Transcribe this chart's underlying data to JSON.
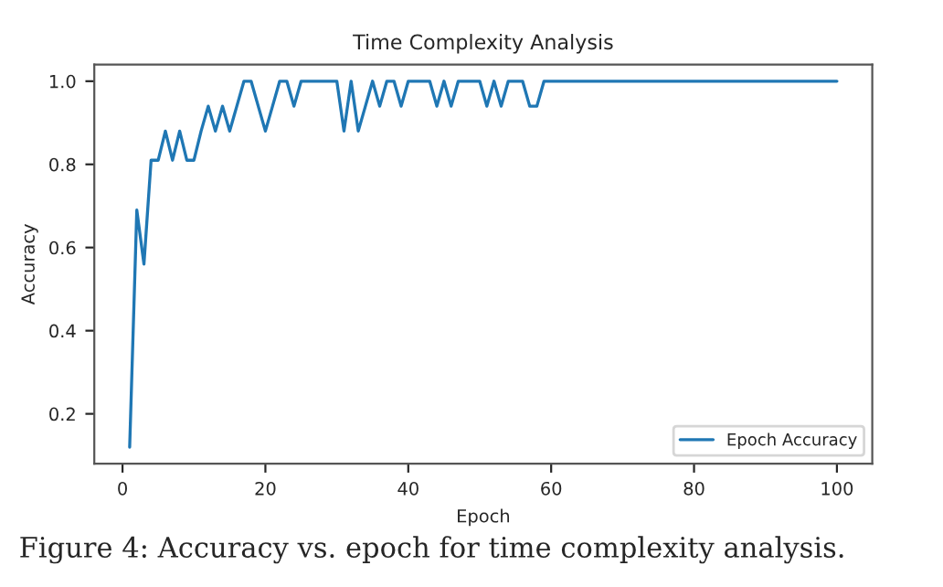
{
  "chart_data": {
    "type": "line",
    "title": "Time Complexity Analysis",
    "xlabel": "Epoch",
    "ylabel": "Accuracy",
    "x": [
      1,
      2,
      3,
      4,
      5,
      6,
      7,
      8,
      9,
      10,
      11,
      12,
      13,
      14,
      15,
      16,
      17,
      18,
      19,
      20,
      21,
      22,
      23,
      24,
      25,
      26,
      27,
      28,
      29,
      30,
      31,
      32,
      33,
      34,
      35,
      36,
      37,
      38,
      39,
      40,
      41,
      42,
      43,
      44,
      45,
      46,
      47,
      48,
      49,
      50,
      51,
      52,
      53,
      54,
      55,
      56,
      57,
      58,
      59,
      60,
      61,
      62,
      63,
      64,
      65,
      66,
      67,
      68,
      69,
      70,
      71,
      72,
      73,
      74,
      75,
      76,
      77,
      78,
      79,
      80,
      81,
      82,
      83,
      84,
      85,
      86,
      87,
      88,
      89,
      90,
      91,
      92,
      93,
      94,
      95,
      96,
      97,
      98,
      99,
      100
    ],
    "series": [
      {
        "name": "Epoch Accuracy",
        "color": "#1f77b4",
        "values": [
          0.12,
          0.69,
          0.56,
          0.81,
          0.81,
          0.88,
          0.81,
          0.88,
          0.81,
          0.81,
          0.88,
          0.94,
          0.88,
          0.94,
          0.88,
          0.94,
          1,
          1,
          0.94,
          0.88,
          0.94,
          1,
          1,
          0.94,
          1,
          1,
          1,
          1,
          1,
          1,
          0.88,
          1,
          0.88,
          0.94,
          1,
          0.94,
          1,
          1,
          0.94,
          1,
          1,
          1,
          1,
          0.94,
          1,
          0.94,
          1,
          1,
          1,
          1,
          0.94,
          1,
          0.94,
          1,
          1,
          1,
          0.94,
          0.94,
          1,
          1,
          1,
          1,
          1,
          1,
          1,
          1,
          1,
          1,
          1,
          1,
          1,
          1,
          1,
          1,
          1,
          1,
          1,
          1,
          1,
          1,
          1,
          1,
          1,
          1,
          1,
          1,
          1,
          1,
          1,
          1,
          1,
          1,
          1,
          1,
          1,
          1,
          1,
          1,
          1,
          1
        ]
      }
    ],
    "xlim": [
      -3.95,
      104.95
    ],
    "ylim": [
      0.08,
      1.04
    ],
    "xticks": [
      0,
      20,
      40,
      60,
      80,
      100
    ],
    "yticks": [
      0.2,
      0.4,
      0.6,
      0.8,
      {
        "value": 1,
        "label": "1.0"
      }
    ],
    "legend": "lower right",
    "grid": false,
    "marker": "none",
    "line_style": "solid",
    "annotations": [
      "Figure 4: Accuracy vs. epoch for time complexity analysis."
    ]
  }
}
